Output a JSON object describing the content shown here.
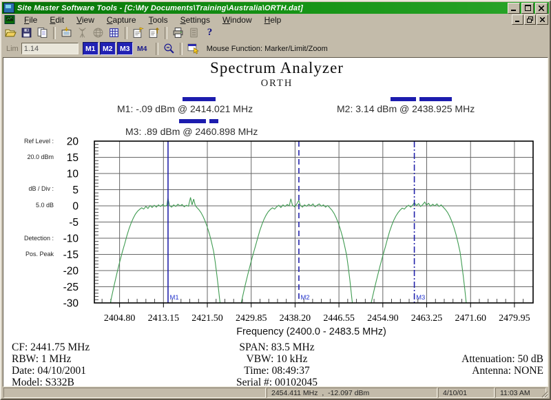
{
  "window": {
    "title": "Site Master Software Tools - [C:\\My Documents\\Training\\Australia\\ORTH.dat]",
    "menus": [
      "File",
      "Edit",
      "View",
      "Capture",
      "Tools",
      "Settings",
      "Window",
      "Help"
    ]
  },
  "toolbar": {
    "icons": [
      {
        "name": "open-file-icon",
        "disabled": false
      },
      {
        "name": "save-icon",
        "disabled": false
      },
      {
        "name": "copy-icon",
        "disabled": false
      },
      {
        "name": "sep"
      },
      {
        "name": "capture-display-icon",
        "disabled": false
      },
      {
        "name": "antenna-icon",
        "disabled": true
      },
      {
        "name": "globe-icon",
        "disabled": true
      },
      {
        "name": "grid-icon",
        "disabled": false
      },
      {
        "name": "sep"
      },
      {
        "name": "report-flag-icon",
        "disabled": false
      },
      {
        "name": "report-up-icon",
        "disabled": false
      },
      {
        "name": "sep"
      },
      {
        "name": "print-icon",
        "disabled": false
      },
      {
        "name": "database-icon",
        "disabled": true
      },
      {
        "name": "help-icon",
        "disabled": false,
        "glyph": "?"
      }
    ],
    "lim_label": "Lim",
    "lim_value": "1.14",
    "marker_buttons": [
      {
        "label": "M1",
        "active": true
      },
      {
        "label": "M2",
        "active": true
      },
      {
        "label": "M3",
        "active": true
      },
      {
        "label": "M4",
        "active": false
      }
    ],
    "mouse_function": "Mouse Function: Marker/Limit/Zoom"
  },
  "report": {
    "title": "Spectrum Analyzer",
    "subtitle": "ORTH",
    "marker_readouts": {
      "m1": "M1: -.09 dBm @ 2414.021 MHz",
      "m2": "M2: 3.14 dBm @ 2438.925 MHz",
      "m3": "M3: .89 dBm @ 2460.898 MHz"
    },
    "side_params": {
      "ref_level_label": "Ref Level :",
      "ref_level_value": "20.0 dBm",
      "db_div_label": "dB / Div :",
      "db_div_value": "5.0 dB",
      "detection_label": "Detection :",
      "detection_value": "Pos. Peak"
    },
    "info": {
      "left": [
        "CF: 2441.75 MHz",
        "RBW: 1 MHz",
        "Date: 04/10/2001",
        "Model: S332B"
      ],
      "center": [
        "SPAN: 83.5 MHz",
        "VBW: 10 kHz",
        "Time: 08:49:37",
        "Serial #: 00102045"
      ],
      "right": [
        "Attenuation: 50 dB",
        "Antenna: NONE"
      ]
    }
  },
  "chart_data": {
    "type": "line",
    "title": "Spectrum Analyzer",
    "subtitle": "ORTH",
    "xlabel": "Frequency (2400.0 - 2483.5 MHz)",
    "x_range": [
      2400.0,
      2483.5
    ],
    "y_range": [
      -30,
      20
    ],
    "grid": true,
    "trace_color": "#3f9b51",
    "marker_color": "#2222aa",
    "y_ticks": [
      20,
      15,
      10,
      5,
      0,
      -5,
      -10,
      -15,
      -20,
      -25,
      -30
    ],
    "x_ticks": [
      {
        "f": 2404.8,
        "label": "2404.80"
      },
      {
        "f": 2413.15,
        "label": "2413.15"
      },
      {
        "f": 2421.5,
        "label": "2421.50"
      },
      {
        "f": 2429.85,
        "label": "2429.85"
      },
      {
        "f": 2438.2,
        "label": "2438.20"
      },
      {
        "f": 2446.55,
        "label": "2446.55"
      },
      {
        "f": 2454.9,
        "label": "2454.90"
      },
      {
        "f": 2463.25,
        "label": "2463.25"
      },
      {
        "f": 2471.6,
        "label": "2471.60"
      },
      {
        "f": 2479.95,
        "label": "2479.95"
      }
    ],
    "markers": [
      {
        "id": "M1",
        "freq": 2414.021,
        "dbm": -0.09,
        "style": "solid"
      },
      {
        "id": "M2",
        "freq": 2438.925,
        "dbm": 3.14,
        "style": "dashed"
      },
      {
        "id": "M3",
        "freq": 2460.898,
        "dbm": 0.89,
        "style": "dashdot"
      }
    ],
    "trace": [
      [
        2402.8,
        -32
      ],
      [
        2403.3,
        -28
      ],
      [
        2403.8,
        -24.3
      ],
      [
        2404.3,
        -20.8
      ],
      [
        2404.8,
        -17.5
      ],
      [
        2405.3,
        -14.4
      ],
      [
        2405.8,
        -11.6
      ],
      [
        2406.2,
        -9.2
      ],
      [
        2406.6,
        -7.1
      ],
      [
        2407.0,
        -5.3
      ],
      [
        2407.4,
        -3.8
      ],
      [
        2407.8,
        -2.6
      ],
      [
        2408.2,
        -1.7
      ],
      [
        2408.6,
        -1.1
      ],
      [
        2409.0,
        -0.6
      ],
      [
        2409.4,
        -1.0
      ],
      [
        2409.8,
        -0.2
      ],
      [
        2410.2,
        -0.8
      ],
      [
        2410.6,
        0.1
      ],
      [
        2411.0,
        -0.5
      ],
      [
        2411.4,
        0.2
      ],
      [
        2411.8,
        -0.4
      ],
      [
        2412.2,
        0.3
      ],
      [
        2412.6,
        -0.2
      ],
      [
        2413.0,
        0.4
      ],
      [
        2413.4,
        -0.1
      ],
      [
        2413.8,
        0.2
      ],
      [
        2414.0,
        2.4
      ],
      [
        2414.3,
        0.1
      ],
      [
        2414.7,
        -0.4
      ],
      [
        2415.1,
        0.3
      ],
      [
        2415.5,
        -0.2
      ],
      [
        2415.9,
        0.5
      ],
      [
        2416.3,
        0.0
      ],
      [
        2416.7,
        0.4
      ],
      [
        2417.1,
        -0.3
      ],
      [
        2417.5,
        0.2
      ],
      [
        2417.9,
        -0.1
      ],
      [
        2418.3,
        2.6
      ],
      [
        2418.6,
        0.3
      ],
      [
        2418.9,
        2.1
      ],
      [
        2419.2,
        0.1
      ],
      [
        2419.5,
        -0.5
      ],
      [
        2419.9,
        -1.2
      ],
      [
        2420.3,
        -2.1
      ],
      [
        2420.7,
        -3.3
      ],
      [
        2421.1,
        -4.8
      ],
      [
        2421.5,
        -6.6
      ],
      [
        2421.9,
        -8.7
      ],
      [
        2422.3,
        -11.2
      ],
      [
        2422.7,
        -14.1
      ],
      [
        2423.0,
        -17.4
      ],
      [
        2423.3,
        -21.1
      ],
      [
        2423.6,
        -25.2
      ],
      [
        2423.9,
        -29.7
      ],
      [
        2424.1,
        -33
      ],
      [
        2425.5,
        -35
      ],
      [
        2427.0,
        -35
      ],
      [
        2427.7,
        -32
      ],
      [
        2428.2,
        -28.2
      ],
      [
        2428.7,
        -24.6
      ],
      [
        2429.2,
        -21.2
      ],
      [
        2429.7,
        -18.0
      ],
      [
        2430.2,
        -15.0
      ],
      [
        2430.7,
        -12.2
      ],
      [
        2431.1,
        -9.8
      ],
      [
        2431.5,
        -7.6
      ],
      [
        2431.9,
        -5.7
      ],
      [
        2432.3,
        -4.1
      ],
      [
        2432.7,
        -2.8
      ],
      [
        2433.1,
        -1.8
      ],
      [
        2433.5,
        -1.1
      ],
      [
        2433.9,
        -0.6
      ],
      [
        2434.3,
        -1.0
      ],
      [
        2434.7,
        -0.3
      ],
      [
        2435.1,
        0.2
      ],
      [
        2435.5,
        -0.5
      ],
      [
        2435.9,
        0.3
      ],
      [
        2436.3,
        -0.2
      ],
      [
        2436.7,
        0.4
      ],
      [
        2437.1,
        0.0
      ],
      [
        2437.4,
        2.2
      ],
      [
        2437.7,
        0.2
      ],
      [
        2438.1,
        -0.3
      ],
      [
        2438.5,
        0.5
      ],
      [
        2438.9,
        1.7
      ],
      [
        2439.2,
        0.2
      ],
      [
        2439.6,
        -0.4
      ],
      [
        2440.0,
        0.3
      ],
      [
        2440.4,
        -0.1
      ],
      [
        2440.8,
        0.5
      ],
      [
        2441.2,
        0.0
      ],
      [
        2441.6,
        0.6
      ],
      [
        2442.0,
        -0.3
      ],
      [
        2442.4,
        0.2
      ],
      [
        2442.8,
        0.6
      ],
      [
        2443.2,
        -0.1
      ],
      [
        2443.6,
        0.3
      ],
      [
        2444.0,
        -0.4
      ],
      [
        2444.4,
        0.1
      ],
      [
        2444.8,
        -0.6
      ],
      [
        2445.2,
        -1.3
      ],
      [
        2445.6,
        -2.3
      ],
      [
        2446.0,
        -3.6
      ],
      [
        2446.4,
        -5.2
      ],
      [
        2446.8,
        -7.1
      ],
      [
        2447.2,
        -9.4
      ],
      [
        2447.6,
        -12.1
      ],
      [
        2448.0,
        -15.2
      ],
      [
        2448.3,
        -18.7
      ],
      [
        2448.6,
        -22.6
      ],
      [
        2448.9,
        -26.9
      ],
      [
        2449.2,
        -31.5
      ],
      [
        2449.4,
        -34
      ],
      [
        2450.5,
        -35
      ],
      [
        2451.8,
        -35
      ],
      [
        2452.4,
        -32
      ],
      [
        2452.9,
        -28.4
      ],
      [
        2453.4,
        -24.9
      ],
      [
        2453.9,
        -21.6
      ],
      [
        2454.4,
        -18.4
      ],
      [
        2454.9,
        -15.4
      ],
      [
        2455.4,
        -12.6
      ],
      [
        2455.8,
        -10.1
      ],
      [
        2456.2,
        -7.9
      ],
      [
        2456.6,
        -6.0
      ],
      [
        2457.0,
        -4.4
      ],
      [
        2457.4,
        -3.1
      ],
      [
        2457.8,
        -2.1
      ],
      [
        2458.2,
        -1.3
      ],
      [
        2458.6,
        -0.7
      ],
      [
        2459.0,
        -1.0
      ],
      [
        2459.4,
        -0.3
      ],
      [
        2459.8,
        0.2
      ],
      [
        2460.2,
        -0.4
      ],
      [
        2460.6,
        0.3
      ],
      [
        2460.9,
        1.0
      ],
      [
        2461.3,
        0.1
      ],
      [
        2461.7,
        0.7
      ],
      [
        2462.1,
        -0.2
      ],
      [
        2462.5,
        0.4
      ],
      [
        2462.9,
        1.2
      ],
      [
        2463.2,
        0.2
      ],
      [
        2463.6,
        0.8
      ],
      [
        2464.0,
        -0.1
      ],
      [
        2464.4,
        0.5
      ],
      [
        2464.8,
        0.0
      ],
      [
        2465.2,
        0.6
      ],
      [
        2465.6,
        -0.2
      ],
      [
        2466.0,
        0.3
      ],
      [
        2466.4,
        -0.4
      ],
      [
        2466.8,
        -1.1
      ],
      [
        2467.2,
        -2.0
      ],
      [
        2467.6,
        -3.2
      ],
      [
        2468.0,
        -4.7
      ],
      [
        2468.4,
        -6.5
      ],
      [
        2468.8,
        -8.7
      ],
      [
        2469.2,
        -11.3
      ],
      [
        2469.6,
        -14.3
      ],
      [
        2469.9,
        -17.7
      ],
      [
        2470.2,
        -21.5
      ],
      [
        2470.5,
        -25.7
      ],
      [
        2470.8,
        -30.3
      ],
      [
        2471.0,
        -33
      ]
    ]
  },
  "statusbar": {
    "reading": "2454.411 MHz  ,  -12.097 dBm",
    "date": "4/10/01",
    "time": "11:03 AM"
  }
}
